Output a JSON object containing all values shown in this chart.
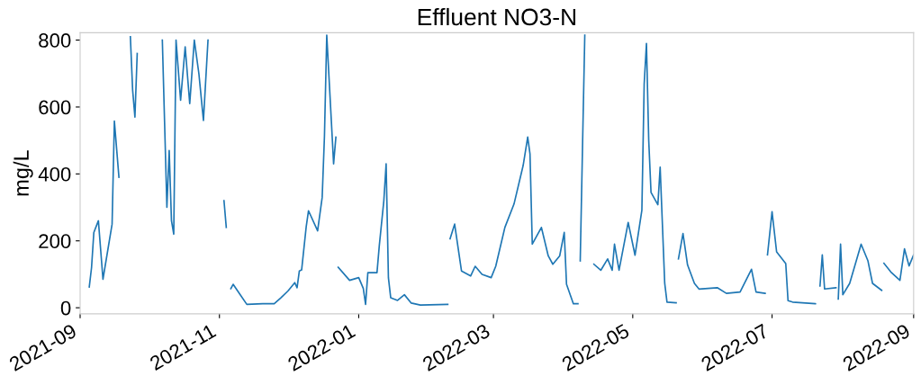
{
  "chart_data": {
    "type": "line",
    "title": "Effluent NO3-N",
    "ylabel": "mg/L",
    "x": [
      "2021-09-05",
      "2021-09-06",
      "2021-09-07",
      "2021-09-09",
      "2021-09-11",
      "2021-09-15",
      "2021-09-16",
      "2021-09-18",
      "2021-09-19",
      "2021-09-23",
      "2021-09-24",
      "2021-09-25",
      "2021-09-26",
      "2021-09-27",
      "2021-10-07",
      "2021-10-08",
      "2021-10-09",
      "2021-10-10",
      "2021-10-11",
      "2021-10-12",
      "2021-10-13",
      "2021-10-15",
      "2021-10-17",
      "2021-10-19",
      "2021-10-21",
      "2021-10-23",
      "2021-10-25",
      "2021-10-27",
      "2021-10-28",
      "2021-11-03",
      "2021-11-04",
      "2021-11-05",
      "2021-11-06",
      "2021-11-07",
      "2021-11-10",
      "2021-11-13",
      "2021-11-20",
      "2021-11-25",
      "2021-11-28",
      "2021-12-01",
      "2021-12-04",
      "2021-12-05",
      "2021-12-06",
      "2021-12-07",
      "2021-12-09",
      "2021-12-10",
      "2021-12-14",
      "2021-12-16",
      "2021-12-17",
      "2021-12-18",
      "2021-12-20",
      "2021-12-21",
      "2021-12-22",
      "2021-12-22T12:00",
      "2021-12-23",
      "2021-12-28",
      "2022-01-01",
      "2022-01-03",
      "2022-01-04",
      "2022-01-05",
      "2022-01-09",
      "2022-01-10",
      "2022-01-12",
      "2022-01-13",
      "2022-01-14",
      "2022-01-15",
      "2022-01-18",
      "2022-01-21",
      "2022-01-24",
      "2022-01-28",
      "2022-02-09",
      "2022-02-09T12:00",
      "2022-02-10",
      "2022-02-12",
      "2022-02-15",
      "2022-02-19",
      "2022-02-21",
      "2022-02-24",
      "2022-02-28",
      "2022-03-02",
      "2022-03-06",
      "2022-03-10",
      "2022-03-14",
      "2022-03-16",
      "2022-03-17",
      "2022-03-18",
      "2022-03-22",
      "2022-03-25",
      "2022-03-27",
      "2022-03-30",
      "2022-04-01",
      "2022-04-02",
      "2022-04-05",
      "2022-04-07",
      "2022-04-07T12:00",
      "2022-04-08",
      "2022-04-09",
      "2022-04-10",
      "2022-04-11",
      "2022-04-14",
      "2022-04-17",
      "2022-04-20",
      "2022-04-22",
      "2022-04-23",
      "2022-04-25",
      "2022-04-29",
      "2022-05-02",
      "2022-05-05",
      "2022-05-06",
      "2022-05-07",
      "2022-05-08",
      "2022-05-09",
      "2022-05-12",
      "2022-05-13",
      "2022-05-15",
      "2022-05-16",
      "2022-05-20",
      "2022-05-20T12:00",
      "2022-05-21",
      "2022-05-23",
      "2022-05-25",
      "2022-05-28",
      "2022-05-30",
      "2022-06-07",
      "2022-06-11",
      "2022-06-17",
      "2022-06-22",
      "2022-06-24",
      "2022-06-28",
      "2022-06-28T12:00",
      "2022-06-29",
      "2022-07-01",
      "2022-07-03",
      "2022-07-07",
      "2022-07-08",
      "2022-07-10",
      "2022-07-20",
      "2022-07-21",
      "2022-07-22",
      "2022-07-23",
      "2022-07-24",
      "2022-07-29",
      "2022-07-29T12:00",
      "2022-07-30",
      "2022-07-31",
      "2022-08-01",
      "2022-08-04",
      "2022-08-09",
      "2022-08-12",
      "2022-08-14",
      "2022-08-18",
      "2022-08-18T12:00",
      "2022-08-19",
      "2022-08-22",
      "2022-08-26",
      "2022-08-28",
      "2022-08-30",
      "2022-09-01"
    ],
    "series": [
      {
        "color": "#1f77b4",
        "values": [
          62,
          120,
          225,
          260,
          85,
          250,
          558,
          390,
          null,
          810,
          650,
          570,
          760,
          null,
          800,
          550,
          300,
          470,
          260,
          220,
          800,
          620,
          780,
          610,
          800,
          700,
          560,
          800,
          null,
          320,
          240,
          null,
          57,
          70,
          40,
          10,
          12,
          12,
          30,
          50,
          75,
          60,
          110,
          113,
          242,
          290,
          230,
          330,
          514,
          815,
          560,
          430,
          510,
          null,
          121,
          82,
          90,
          58,
          10,
          105,
          105,
          185,
          320,
          430,
          90,
          30,
          22,
          39,
          14,
          8,
          10,
          null,
          206,
          250,
          110,
          95,
          124,
          100,
          90,
          124,
          240,
          310,
          425,
          510,
          460,
          190,
          240,
          155,
          130,
          155,
          225,
          70,
          12,
          12,
          null,
          140,
          480,
          815,
          null,
          130,
          112,
          146,
          112,
          190,
          112,
          255,
          157,
          292,
          668,
          790,
          500,
          345,
          308,
          420,
          73,
          17,
          15,
          null,
          146,
          222,
          128,
          73,
          56,
          60,
          43,
          47,
          115,
          47,
          43,
          null,
          158,
          287,
          167,
          132,
          21,
          17,
          12,
          null,
          65,
          158,
          56,
          60,
          null,
          26,
          190,
          39,
          73,
          190,
          140,
          73,
          52,
          null,
          133,
          107,
          82,
          176,
          125,
          158
        ]
      }
    ],
    "xlim": [
      "2021-09",
      "2022-09"
    ],
    "xticks": [
      "2021-09",
      "2021-11",
      "2022-01",
      "2022-03",
      "2022-05",
      "2022-07",
      "2022-09"
    ],
    "ylim": [
      -18,
      822
    ],
    "yticks": [
      0,
      200,
      400,
      600,
      800
    ],
    "grid": false,
    "marker": "none",
    "line_style": "solid"
  }
}
